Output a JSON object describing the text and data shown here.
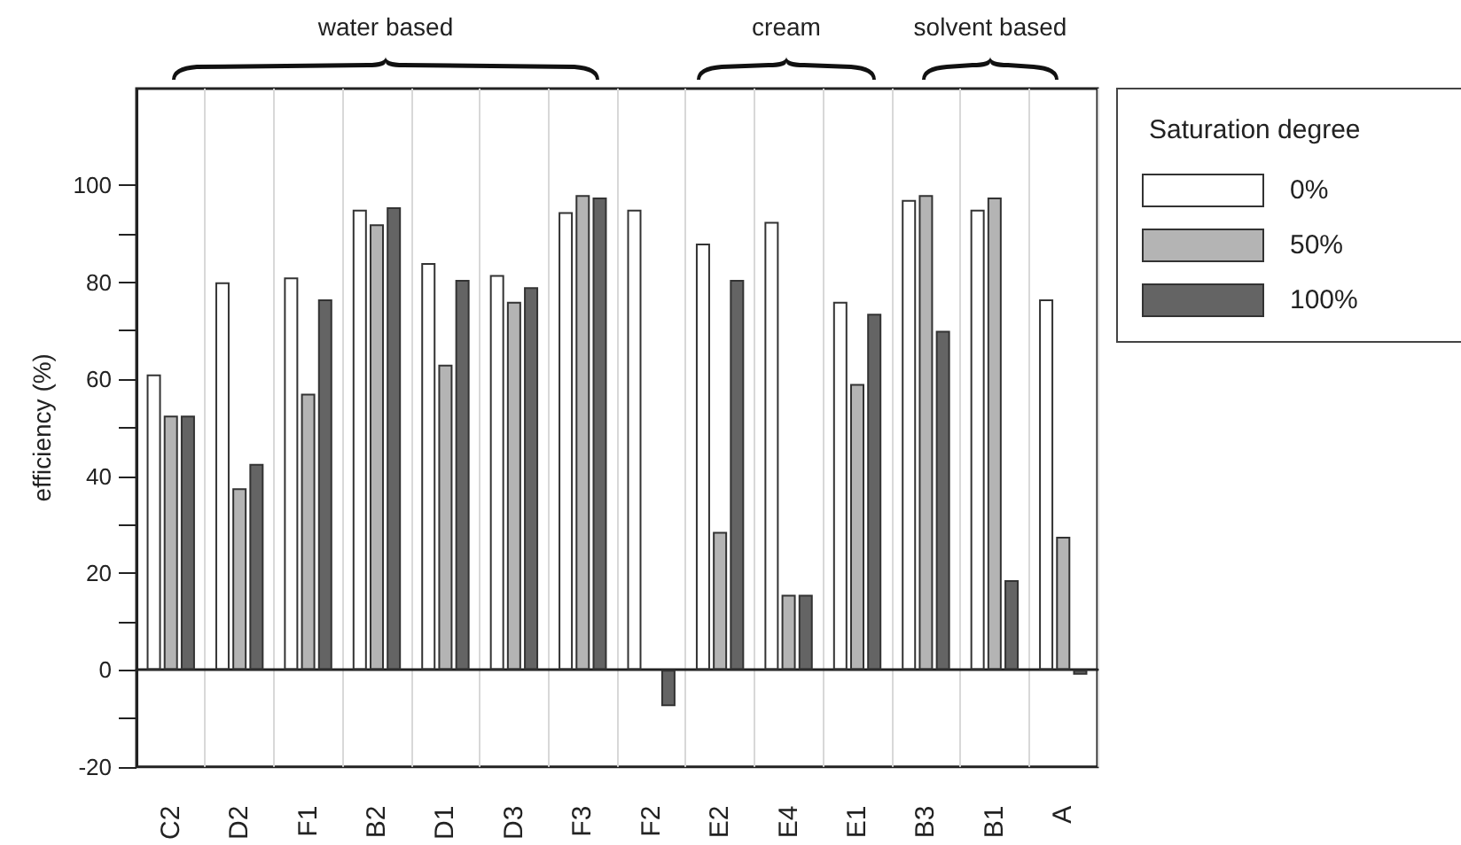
{
  "chart_data": {
    "type": "bar",
    "categories": [
      "C2",
      "D2",
      "F1",
      "B2",
      "D1",
      "D3",
      "F3",
      "F2",
      "E2",
      "E4",
      "E1",
      "B3",
      "B1",
      "A"
    ],
    "series": [
      {
        "name": "0%",
        "color": "#ffffff",
        "values": [
          61,
          80,
          81,
          95,
          84,
          81.5,
          94.5,
          95,
          88,
          92.5,
          76,
          97,
          95,
          76.5
        ]
      },
      {
        "name": "50%",
        "color": "#b4b4b4",
        "values": [
          52.5,
          37.5,
          57,
          92,
          63,
          76,
          98,
          0,
          28.5,
          15.5,
          59,
          98,
          97.5,
          27.5
        ]
      },
      {
        "name": "100%",
        "color": "#646464",
        "values": [
          52.5,
          42.5,
          76.5,
          95.5,
          80.5,
          79,
          97.5,
          -7.5,
          80.5,
          15.5,
          73.5,
          70,
          18.5,
          -1
        ]
      }
    ],
    "ylabel": "efficiency (%)",
    "legend_title": "Saturation degree",
    "legend": "right",
    "grid": "x",
    "ylim": [
      -20,
      120
    ],
    "yticks": [
      -20,
      {
        "value": -10,
        "label": null
      },
      0,
      {
        "value": 10,
        "label": null
      },
      20,
      {
        "value": 30,
        "label": null
      },
      40,
      {
        "value": 50,
        "label": null
      },
      60,
      {
        "value": 70,
        "label": null
      },
      80,
      {
        "value": 90,
        "label": null
      },
      100
    ],
    "annotations": [
      "water based",
      "cream",
      "solvent based"
    ]
  }
}
